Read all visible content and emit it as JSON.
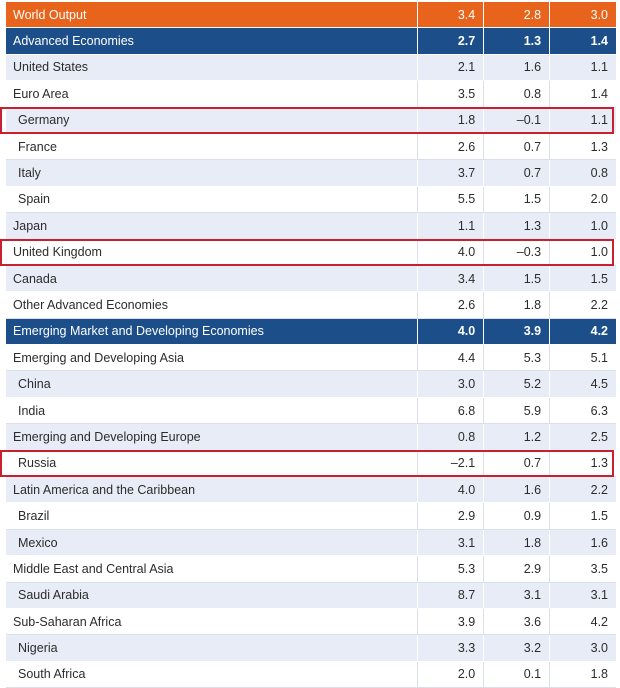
{
  "rows": [
    {
      "label": "World Output",
      "v1": "3.4",
      "v2": "2.8",
      "v3": "3.0",
      "kind": "world"
    },
    {
      "label": "Advanced Economies",
      "v1": "2.7",
      "v2": "1.3",
      "v3": "1.4",
      "kind": "group"
    },
    {
      "label": "United States",
      "v1": "2.1",
      "v2": "1.6",
      "v3": "1.1",
      "kind": "odd"
    },
    {
      "label": "Euro Area",
      "v1": "3.5",
      "v2": "0.8",
      "v3": "1.4",
      "kind": "even"
    },
    {
      "label": "Germany",
      "v1": "1.8",
      "v2": "–0.1",
      "v3": "1.1",
      "kind": "odd",
      "indent": true,
      "highlight": true
    },
    {
      "label": "France",
      "v1": "2.6",
      "v2": "0.7",
      "v3": "1.3",
      "kind": "even",
      "indent": true
    },
    {
      "label": "Italy",
      "v1": "3.7",
      "v2": "0.7",
      "v3": "0.8",
      "kind": "odd",
      "indent": true
    },
    {
      "label": "Spain",
      "v1": "5.5",
      "v2": "1.5",
      "v3": "2.0",
      "kind": "even",
      "indent": true
    },
    {
      "label": "Japan",
      "v1": "1.1",
      "v2": "1.3",
      "v3": "1.0",
      "kind": "odd"
    },
    {
      "label": "United Kingdom",
      "v1": "4.0",
      "v2": "–0.3",
      "v3": "1.0",
      "kind": "even",
      "highlight": true
    },
    {
      "label": "Canada",
      "v1": "3.4",
      "v2": "1.5",
      "v3": "1.5",
      "kind": "odd"
    },
    {
      "label": "Other Advanced Economies",
      "v1": "2.6",
      "v2": "1.8",
      "v3": "2.2",
      "kind": "even"
    },
    {
      "label": "Emerging Market and Developing Economies",
      "v1": "4.0",
      "v2": "3.9",
      "v3": "4.2",
      "kind": "group"
    },
    {
      "label": "Emerging and Developing Asia",
      "v1": "4.4",
      "v2": "5.3",
      "v3": "5.1",
      "kind": "even"
    },
    {
      "label": "China",
      "v1": "3.0",
      "v2": "5.2",
      "v3": "4.5",
      "kind": "odd",
      "indent": true
    },
    {
      "label": "India",
      "v1": "6.8",
      "v2": "5.9",
      "v3": "6.3",
      "kind": "even",
      "indent": true
    },
    {
      "label": "Emerging and Developing Europe",
      "v1": "0.8",
      "v2": "1.2",
      "v3": "2.5",
      "kind": "odd"
    },
    {
      "label": "Russia",
      "v1": "–2.1",
      "v2": "0.7",
      "v3": "1.3",
      "kind": "even",
      "indent": true,
      "highlight": true
    },
    {
      "label": "Latin America and the Caribbean",
      "v1": "4.0",
      "v2": "1.6",
      "v3": "2.2",
      "kind": "odd"
    },
    {
      "label": "Brazil",
      "v1": "2.9",
      "v2": "0.9",
      "v3": "1.5",
      "kind": "even",
      "indent": true
    },
    {
      "label": "Mexico",
      "v1": "3.1",
      "v2": "1.8",
      "v3": "1.6",
      "kind": "odd",
      "indent": true
    },
    {
      "label": "Middle East and Central Asia",
      "v1": "5.3",
      "v2": "2.9",
      "v3": "3.5",
      "kind": "even"
    },
    {
      "label": "Saudi Arabia",
      "v1": "8.7",
      "v2": "3.1",
      "v3": "3.1",
      "kind": "odd",
      "indent": true
    },
    {
      "label": "Sub-Saharan Africa",
      "v1": "3.9",
      "v2": "3.6",
      "v3": "4.2",
      "kind": "even"
    },
    {
      "label": "Nigeria",
      "v1": "3.3",
      "v2": "3.2",
      "v3": "3.0",
      "kind": "odd",
      "indent": true
    },
    {
      "label": "South Africa",
      "v1": "2.0",
      "v2": "0.1",
      "v3": "1.8",
      "kind": "even",
      "indent": true
    }
  ],
  "colors": {
    "world_header": "#e8641c",
    "group_header": "#1c4f8a",
    "alt_row": "#e7ecf7",
    "highlight_border": "#c8202e"
  }
}
